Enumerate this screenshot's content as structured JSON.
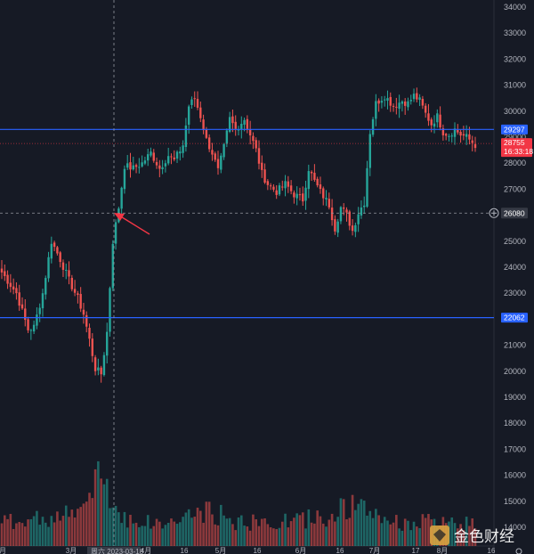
{
  "chart_data": {
    "type": "candlestick",
    "y_axis": {
      "min": 14000,
      "max": 34000,
      "ticks": [
        14000,
        15000,
        16000,
        17000,
        18000,
        19000,
        20000,
        21000,
        22000,
        23000,
        24000,
        25000,
        26000,
        27000,
        28000,
        29000,
        30000,
        31000,
        32000,
        33000,
        34000
      ]
    },
    "x_axis": {
      "ticks": [
        "月",
        "3月",
        "4月",
        "16",
        "5月",
        "16",
        "6月",
        "16",
        "7月",
        "17",
        "8月",
        "16"
      ],
      "crosshair_label": "周六 2023-03-18"
    },
    "horizontal_lines": [
      {
        "name": "resistance",
        "value": 29297,
        "color": "#2962ff"
      },
      {
        "name": "support",
        "value": 22062,
        "color": "#2962ff"
      }
    ],
    "crosshair": {
      "value_label": "26080",
      "price": 26080
    },
    "last_price": {
      "value": "28755",
      "countdown": "16:33:18",
      "color": "#f23645"
    },
    "annotation": "arrow",
    "colors": {
      "up": "#26a69a",
      "down": "#ef5350",
      "background": "#161a25"
    },
    "anchors": [
      [
        0,
        23800
      ],
      [
        5,
        23000
      ],
      [
        9,
        21600
      ],
      [
        11,
        21700
      ],
      [
        14,
        23000
      ],
      [
        17,
        25000
      ],
      [
        20,
        24300
      ],
      [
        23,
        23500
      ],
      [
        26,
        22800
      ],
      [
        28,
        22200
      ],
      [
        30,
        21200
      ],
      [
        32,
        20100
      ],
      [
        34,
        19900
      ],
      [
        36,
        21500
      ],
      [
        38,
        25000
      ],
      [
        40,
        26300
      ],
      [
        42,
        27900
      ],
      [
        45,
        27800
      ],
      [
        48,
        28000
      ],
      [
        51,
        28400
      ],
      [
        54,
        27800
      ],
      [
        57,
        28300
      ],
      [
        59,
        28100
      ],
      [
        62,
        28700
      ],
      [
        64,
        30200
      ],
      [
        66,
        30500
      ],
      [
        68,
        29800
      ],
      [
        70,
        28900
      ],
      [
        72,
        28400
      ],
      [
        74,
        27700
      ],
      [
        76,
        28600
      ],
      [
        78,
        29700
      ],
      [
        80,
        29300
      ],
      [
        83,
        29700
      ],
      [
        85,
        29100
      ],
      [
        87,
        28500
      ],
      [
        89,
        27600
      ],
      [
        91,
        27200
      ],
      [
        94,
        26900
      ],
      [
        97,
        27200
      ],
      [
        100,
        26800
      ],
      [
        103,
        26600
      ],
      [
        105,
        27800
      ],
      [
        107,
        27300
      ],
      [
        109,
        26900
      ],
      [
        112,
        26400
      ],
      [
        114,
        25500
      ],
      [
        116,
        26300
      ],
      [
        118,
        26000
      ],
      [
        120,
        25400
      ],
      [
        122,
        26100
      ],
      [
        124,
        26500
      ],
      [
        126,
        29200
      ],
      [
        128,
        30300
      ],
      [
        131,
        30600
      ],
      [
        134,
        30200
      ],
      [
        137,
        30400
      ],
      [
        139,
        30300
      ],
      [
        141,
        30600
      ],
      [
        143,
        30400
      ],
      [
        145,
        29900
      ],
      [
        147,
        29500
      ],
      [
        149,
        29800
      ],
      [
        151,
        29200
      ],
      [
        153,
        29100
      ],
      [
        155,
        29300
      ],
      [
        157,
        29100
      ],
      [
        159,
        29000
      ],
      [
        162,
        28700
      ]
    ],
    "volume_anchors": [
      [
        0,
        0.3
      ],
      [
        10,
        0.35
      ],
      [
        25,
        0.42
      ],
      [
        28,
        0.52
      ],
      [
        30,
        0.6
      ],
      [
        32,
        0.78
      ],
      [
        34,
        1.0
      ],
      [
        36,
        0.82
      ],
      [
        38,
        0.5
      ],
      [
        44,
        0.35
      ],
      [
        55,
        0.28
      ],
      [
        64,
        0.4
      ],
      [
        72,
        0.45
      ],
      [
        80,
        0.32
      ],
      [
        92,
        0.3
      ],
      [
        105,
        0.36
      ],
      [
        112,
        0.4
      ],
      [
        116,
        0.48
      ],
      [
        120,
        0.52
      ],
      [
        124,
        0.46
      ],
      [
        128,
        0.42
      ],
      [
        136,
        0.3
      ],
      [
        145,
        0.32
      ],
      [
        156,
        0.28
      ],
      [
        162,
        0.35
      ]
    ]
  },
  "watermark": {
    "text": "金色财经"
  },
  "axis_overflow_label": "14000"
}
